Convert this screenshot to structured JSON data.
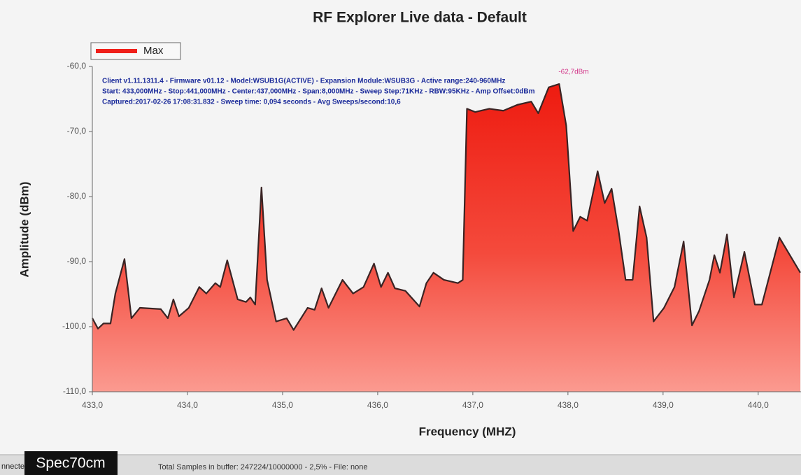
{
  "chart_data": {
    "type": "area",
    "title": "RF Explorer Live data - Default",
    "x_label": "Frequency (MHZ)",
    "y_label": "Amplitude (dBm)",
    "legend": "top-left",
    "grid": false,
    "annotations": [
      "Client v1.11.1311.4 - Firmware v01.12 - Model:WSUB1G(ACTIVE) - Expansion Module:WSUB3G - Active range:240-960MHz",
      "Start: 433,000MHz - Stop:441,000MHz - Center:437,000MHz - Span:8,000MHz - Sweep Step:71KHz - RBW:95KHz - Amp Offset:0dBm",
      "Captured:2017-02-26 17:08:31.832 - Sweep time: 0,094 seconds - Avg Sweeps/second:10,6",
      "-62,7dBm"
    ],
    "xlim": [
      433,
      440.45
    ],
    "xticks": [
      {
        "value": 433,
        "label": "433,0"
      },
      {
        "value": 434,
        "label": "434,0"
      },
      {
        "value": 435,
        "label": "435,0"
      },
      {
        "value": 436,
        "label": "436,0"
      },
      {
        "value": 437,
        "label": "437,0"
      },
      {
        "value": 438,
        "label": "438,0"
      },
      {
        "value": 439,
        "label": "439,0"
      },
      {
        "value": 440,
        "label": "440,0"
      }
    ],
    "ylim": [
      -110,
      -60
    ],
    "yticks": [
      {
        "value": -60,
        "label": "-60,0"
      },
      {
        "value": -70,
        "label": "-70,0"
      },
      {
        "value": -80,
        "label": "-80,0"
      },
      {
        "value": -90,
        "label": "-90,0"
      },
      {
        "value": -100,
        "label": "-100,0"
      },
      {
        "value": -110,
        "label": "-110,0"
      }
    ],
    "x": [
      433.0,
      433.059,
      433.118,
      433.191,
      433.242,
      433.338,
      433.411,
      433.5,
      433.72,
      433.794,
      433.852,
      433.911,
      434.014,
      434.124,
      434.198,
      434.293,
      434.345,
      434.418,
      434.528,
      434.616,
      434.661,
      434.712,
      434.778,
      434.837,
      434.932,
      435.043,
      435.116,
      435.263,
      435.337,
      435.41,
      435.483,
      435.63,
      435.741,
      435.851,
      435.961,
      436.035,
      436.108,
      436.181,
      436.292,
      436.439,
      436.512,
      436.586,
      436.696,
      436.843,
      436.894,
      436.938,
      437.026,
      437.173,
      437.32,
      437.467,
      437.614,
      437.688,
      437.798,
      437.908,
      437.982,
      438.055,
      438.129,
      438.202,
      438.312,
      438.386,
      438.459,
      438.533,
      438.606,
      438.68,
      438.753,
      438.827,
      438.9,
      439.01,
      439.12,
      439.216,
      439.304,
      439.378,
      439.488,
      439.539,
      439.598,
      439.672,
      439.745,
      439.855,
      439.965,
      440.039,
      440.223,
      440.333,
      440.443
    ],
    "series": [
      {
        "name": "Max",
        "color": "#f0201a",
        "values": [
          -98.7,
          -100.3,
          -99.5,
          -99.5,
          -94.9,
          -89.6,
          -98.7,
          -97.1,
          -97.3,
          -98.7,
          -95.8,
          -98.4,
          -97.1,
          -93.9,
          -94.9,
          -93.3,
          -93.9,
          -89.8,
          -95.8,
          -96.2,
          -95.5,
          -96.6,
          -78.6,
          -92.8,
          -99.2,
          -98.7,
          -100.5,
          -97.1,
          -97.4,
          -94.1,
          -97.1,
          -92.8,
          -94.9,
          -93.9,
          -90.3,
          -93.9,
          -91.7,
          -94.1,
          -94.5,
          -96.9,
          -93.3,
          -91.7,
          -92.8,
          -93.3,
          -92.8,
          -66.5,
          -67.0,
          -66.5,
          -66.8,
          -65.9,
          -65.4,
          -67.2,
          -63.2,
          -62.7,
          -69.1,
          -85.3,
          -83.1,
          -83.7,
          -76.1,
          -81.0,
          -78.8,
          -85.3,
          -92.8,
          -92.8,
          -81.5,
          -86.3,
          -99.2,
          -97.1,
          -93.9,
          -86.9,
          -99.8,
          -97.6,
          -92.8,
          -89.0,
          -91.7,
          -85.8,
          -95.5,
          -88.5,
          -96.6,
          -96.6,
          -86.3,
          -89.0,
          -91.7
        ]
      }
    ]
  },
  "overlay_label": "Spec70cm",
  "status_bar": {
    "left": "nnected",
    "text": "Total Samples in buffer: 247224/10000000 - 2,5%   - File: none"
  }
}
